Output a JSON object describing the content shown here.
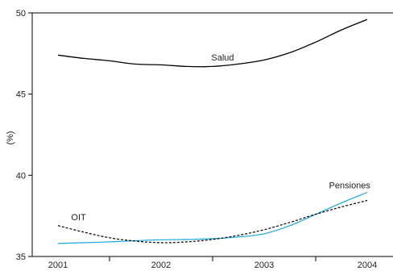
{
  "chart_data": {
    "type": "line",
    "ylabel": "(%)",
    "ylim": [
      35,
      50
    ],
    "yticks": [
      35,
      40,
      45,
      50
    ],
    "xlim": [
      2000.75,
      2004.25
    ],
    "xticks": [
      2001,
      2002,
      2003,
      2004
    ],
    "grid": false,
    "series": [
      {
        "name": "Salud",
        "color": "#000000",
        "dash": "solid",
        "x": [
          2001.0,
          2001.25,
          2001.5,
          2001.75,
          2002.0,
          2002.25,
          2002.5,
          2002.75,
          2003.0,
          2003.25,
          2003.5,
          2003.75,
          2004.0
        ],
        "values": [
          47.4,
          47.2,
          47.05,
          46.85,
          46.8,
          46.7,
          46.7,
          46.85,
          47.1,
          47.55,
          48.2,
          48.95,
          49.6
        ]
      },
      {
        "name": "Pensiones",
        "color": "#1aa7d8",
        "dash": "solid",
        "x": [
          2001.0,
          2001.25,
          2001.5,
          2001.75,
          2002.0,
          2002.25,
          2002.5,
          2002.75,
          2003.0,
          2003.25,
          2003.5,
          2003.75,
          2004.0
        ],
        "values": [
          35.8,
          35.85,
          35.9,
          35.97,
          36.03,
          36.05,
          36.1,
          36.2,
          36.4,
          36.9,
          37.6,
          38.3,
          38.95
        ]
      },
      {
        "name": "OIT",
        "color": "#000000",
        "dash": "dashed",
        "x": [
          2001.0,
          2001.25,
          2001.5,
          2001.75,
          2002.0,
          2002.25,
          2002.5,
          2002.75,
          2003.0,
          2003.25,
          2003.5,
          2003.75,
          2004.0
        ],
        "values": [
          36.9,
          36.5,
          36.15,
          35.95,
          35.85,
          35.9,
          36.05,
          36.3,
          36.65,
          37.1,
          37.6,
          38.05,
          38.45
        ]
      }
    ]
  }
}
